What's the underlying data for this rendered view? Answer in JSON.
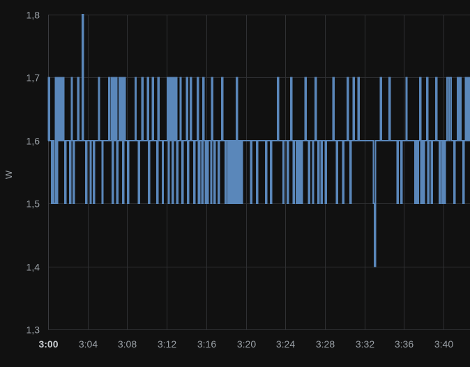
{
  "chart_data": {
    "type": "line",
    "title": "",
    "xlabel": "",
    "ylabel": "W",
    "ylim": [
      1.3,
      1.8
    ],
    "xlim_minutes": [
      0,
      43
    ],
    "grid": true,
    "legend": "none",
    "series_color": "#5a87ba",
    "x_ticks": [
      {
        "label": "3:00",
        "minute": 0,
        "bold": true
      },
      {
        "label": "3:04",
        "minute": 4,
        "bold": false
      },
      {
        "label": "3:08",
        "minute": 8,
        "bold": false
      },
      {
        "label": "3:12",
        "minute": 12,
        "bold": false
      },
      {
        "label": "3:16",
        "minute": 16,
        "bold": false
      },
      {
        "label": "3:20",
        "minute": 20,
        "bold": false
      },
      {
        "label": "3:24",
        "minute": 24,
        "bold": false
      },
      {
        "label": "3:28",
        "minute": 28,
        "bold": false
      },
      {
        "label": "3:32",
        "minute": 32,
        "bold": false
      },
      {
        "label": "3:36",
        "minute": 36,
        "bold": false
      },
      {
        "label": "3:40",
        "minute": 40,
        "bold": false
      }
    ],
    "y_ticks": [
      {
        "label": "1,8",
        "value": 1.8
      },
      {
        "label": "1,7",
        "value": 1.7
      },
      {
        "label": "1,6",
        "value": 1.6
      },
      {
        "label": "1,5",
        "value": 1.5
      },
      {
        "label": "1,4",
        "value": 1.4
      },
      {
        "label": "1,3",
        "value": 1.3
      }
    ],
    "series": [
      {
        "values": [
          [
            0.0,
            1.6
          ],
          [
            0.05,
            1.7
          ],
          [
            0.15,
            1.6
          ],
          [
            0.35,
            1.5
          ],
          [
            0.45,
            1.6
          ],
          [
            0.55,
            1.5
          ],
          [
            0.75,
            1.7
          ],
          [
            0.85,
            1.5
          ],
          [
            0.95,
            1.7
          ],
          [
            1.05,
            1.6
          ],
          [
            1.15,
            1.7
          ],
          [
            1.25,
            1.6
          ],
          [
            1.3,
            1.7
          ],
          [
            1.4,
            1.6
          ],
          [
            1.5,
            1.7
          ],
          [
            1.6,
            1.6
          ],
          [
            1.7,
            1.5
          ],
          [
            1.8,
            1.6
          ],
          [
            2.2,
            1.5
          ],
          [
            2.3,
            1.6
          ],
          [
            2.35,
            1.7
          ],
          [
            2.45,
            1.6
          ],
          [
            2.55,
            1.5
          ],
          [
            2.65,
            1.6
          ],
          [
            3.0,
            1.7
          ],
          [
            3.1,
            1.6
          ],
          [
            3.45,
            1.8
          ],
          [
            3.55,
            1.6
          ],
          [
            3.8,
            1.5
          ],
          [
            3.9,
            1.6
          ],
          [
            4.25,
            1.5
          ],
          [
            4.35,
            1.6
          ],
          [
            4.6,
            1.5
          ],
          [
            4.7,
            1.6
          ],
          [
            5.1,
            1.7
          ],
          [
            5.2,
            1.6
          ],
          [
            5.45,
            1.5
          ],
          [
            5.55,
            1.6
          ],
          [
            6.15,
            1.7
          ],
          [
            6.25,
            1.6
          ],
          [
            6.4,
            1.7
          ],
          [
            6.5,
            1.5
          ],
          [
            6.6,
            1.7
          ],
          [
            6.7,
            1.6
          ],
          [
            6.85,
            1.7
          ],
          [
            6.95,
            1.5
          ],
          [
            7.05,
            1.6
          ],
          [
            7.2,
            1.7
          ],
          [
            7.3,
            1.6
          ],
          [
            7.45,
            1.7
          ],
          [
            7.55,
            1.5
          ],
          [
            7.65,
            1.7
          ],
          [
            7.8,
            1.6
          ],
          [
            8.05,
            1.5
          ],
          [
            8.15,
            1.6
          ],
          [
            8.8,
            1.7
          ],
          [
            8.9,
            1.6
          ],
          [
            9.15,
            1.5
          ],
          [
            9.25,
            1.6
          ],
          [
            9.5,
            1.7
          ],
          [
            9.6,
            1.6
          ],
          [
            10.05,
            1.7
          ],
          [
            10.15,
            1.5
          ],
          [
            10.25,
            1.6
          ],
          [
            10.55,
            1.7
          ],
          [
            10.65,
            1.6
          ],
          [
            11.0,
            1.5
          ],
          [
            11.1,
            1.7
          ],
          [
            11.2,
            1.6
          ],
          [
            11.55,
            1.5
          ],
          [
            11.65,
            1.6
          ],
          [
            12.05,
            1.7
          ],
          [
            12.15,
            1.5
          ],
          [
            12.25,
            1.7
          ],
          [
            12.35,
            1.6
          ],
          [
            12.45,
            1.7
          ],
          [
            12.55,
            1.5
          ],
          [
            12.65,
            1.7
          ],
          [
            12.8,
            1.6
          ],
          [
            12.9,
            1.7
          ],
          [
            13.0,
            1.5
          ],
          [
            13.1,
            1.6
          ],
          [
            13.35,
            1.7
          ],
          [
            13.45,
            1.6
          ],
          [
            13.55,
            1.5
          ],
          [
            13.65,
            1.6
          ],
          [
            14.0,
            1.7
          ],
          [
            14.1,
            1.5
          ],
          [
            14.2,
            1.6
          ],
          [
            14.4,
            1.7
          ],
          [
            14.5,
            1.6
          ],
          [
            14.75,
            1.5
          ],
          [
            14.85,
            1.6
          ],
          [
            15.1,
            1.7
          ],
          [
            15.2,
            1.5
          ],
          [
            15.35,
            1.6
          ],
          [
            15.55,
            1.5
          ],
          [
            15.65,
            1.7
          ],
          [
            15.75,
            1.6
          ],
          [
            15.9,
            1.5
          ],
          [
            16.0,
            1.6
          ],
          [
            16.1,
            1.5
          ],
          [
            16.2,
            1.6
          ],
          [
            16.45,
            1.5
          ],
          [
            16.55,
            1.7
          ],
          [
            16.65,
            1.6
          ],
          [
            16.8,
            1.5
          ],
          [
            16.9,
            1.6
          ],
          [
            17.2,
            1.5
          ],
          [
            17.3,
            1.6
          ],
          [
            17.55,
            1.7
          ],
          [
            17.65,
            1.6
          ],
          [
            17.9,
            1.5
          ],
          [
            18.0,
            1.6
          ],
          [
            18.15,
            1.5
          ],
          [
            18.25,
            1.6
          ],
          [
            18.35,
            1.5
          ],
          [
            18.45,
            1.6
          ],
          [
            18.55,
            1.5
          ],
          [
            18.65,
            1.6
          ],
          [
            18.75,
            1.5
          ],
          [
            18.85,
            1.6
          ],
          [
            18.95,
            1.5
          ],
          [
            19.05,
            1.7
          ],
          [
            19.15,
            1.5
          ],
          [
            19.25,
            1.6
          ],
          [
            19.35,
            1.5
          ],
          [
            19.45,
            1.6
          ],
          [
            19.55,
            1.5
          ],
          [
            19.65,
            1.6
          ],
          [
            20.5,
            1.5
          ],
          [
            20.6,
            1.6
          ],
          [
            21.1,
            1.5
          ],
          [
            21.2,
            1.6
          ],
          [
            22.0,
            1.5
          ],
          [
            22.1,
            1.6
          ],
          [
            22.5,
            1.5
          ],
          [
            22.6,
            1.6
          ],
          [
            23.2,
            1.7
          ],
          [
            23.3,
            1.6
          ],
          [
            23.75,
            1.5
          ],
          [
            23.85,
            1.6
          ],
          [
            24.2,
            1.5
          ],
          [
            24.3,
            1.6
          ],
          [
            24.55,
            1.7
          ],
          [
            24.65,
            1.6
          ],
          [
            24.8,
            1.5
          ],
          [
            24.9,
            1.6
          ],
          [
            25.1,
            1.5
          ],
          [
            25.2,
            1.6
          ],
          [
            25.35,
            1.5
          ],
          [
            25.45,
            1.6
          ],
          [
            25.6,
            1.5
          ],
          [
            25.7,
            1.6
          ],
          [
            26.0,
            1.7
          ],
          [
            26.1,
            1.6
          ],
          [
            26.35,
            1.5
          ],
          [
            26.45,
            1.6
          ],
          [
            26.75,
            1.5
          ],
          [
            26.85,
            1.6
          ],
          [
            27.0,
            1.7
          ],
          [
            27.1,
            1.6
          ],
          [
            27.3,
            1.5
          ],
          [
            27.4,
            1.6
          ],
          [
            27.6,
            1.5
          ],
          [
            27.7,
            1.6
          ],
          [
            28.05,
            1.5
          ],
          [
            28.15,
            1.6
          ],
          [
            28.8,
            1.7
          ],
          [
            28.9,
            1.6
          ],
          [
            29.15,
            1.5
          ],
          [
            29.25,
            1.6
          ],
          [
            29.8,
            1.5
          ],
          [
            29.9,
            1.6
          ],
          [
            30.25,
            1.7
          ],
          [
            30.35,
            1.6
          ],
          [
            30.55,
            1.5
          ],
          [
            30.65,
            1.6
          ],
          [
            30.85,
            1.7
          ],
          [
            30.95,
            1.6
          ],
          [
            31.35,
            1.7
          ],
          [
            31.45,
            1.6
          ],
          [
            32.9,
            1.5
          ],
          [
            33.0,
            1.4
          ],
          [
            33.1,
            1.6
          ],
          [
            33.6,
            1.7
          ],
          [
            33.7,
            1.6
          ],
          [
            34.5,
            1.7
          ],
          [
            34.6,
            1.6
          ],
          [
            35.3,
            1.5
          ],
          [
            35.4,
            1.6
          ],
          [
            35.7,
            1.5
          ],
          [
            35.8,
            1.6
          ],
          [
            36.2,
            1.7
          ],
          [
            36.3,
            1.6
          ],
          [
            37.1,
            1.5
          ],
          [
            37.2,
            1.6
          ],
          [
            37.35,
            1.5
          ],
          [
            37.45,
            1.6
          ],
          [
            37.6,
            1.7
          ],
          [
            37.7,
            1.5
          ],
          [
            37.8,
            1.6
          ],
          [
            37.95,
            1.5
          ],
          [
            38.05,
            1.6
          ],
          [
            38.3,
            1.7
          ],
          [
            38.4,
            1.5
          ],
          [
            38.5,
            1.6
          ],
          [
            38.75,
            1.5
          ],
          [
            38.85,
            1.6
          ],
          [
            39.2,
            1.7
          ],
          [
            39.3,
            1.6
          ],
          [
            39.55,
            1.5
          ],
          [
            39.65,
            1.6
          ],
          [
            39.8,
            1.5
          ],
          [
            39.9,
            1.6
          ],
          [
            40.05,
            1.5
          ],
          [
            40.15,
            1.6
          ],
          [
            40.35,
            1.7
          ],
          [
            40.5,
            1.6
          ],
          [
            40.6,
            1.7
          ],
          [
            40.75,
            1.6
          ],
          [
            41.05,
            1.5
          ],
          [
            41.15,
            1.6
          ],
          [
            41.4,
            1.7
          ],
          [
            41.5,
            1.6
          ],
          [
            41.65,
            1.7
          ],
          [
            41.75,
            1.6
          ],
          [
            41.95,
            1.5
          ],
          [
            42.05,
            1.6
          ],
          [
            42.2,
            1.7
          ],
          [
            42.3,
            1.6
          ],
          [
            42.45,
            1.7
          ],
          [
            42.6,
            1.6
          ],
          [
            43.0,
            1.6
          ]
        ]
      }
    ]
  }
}
